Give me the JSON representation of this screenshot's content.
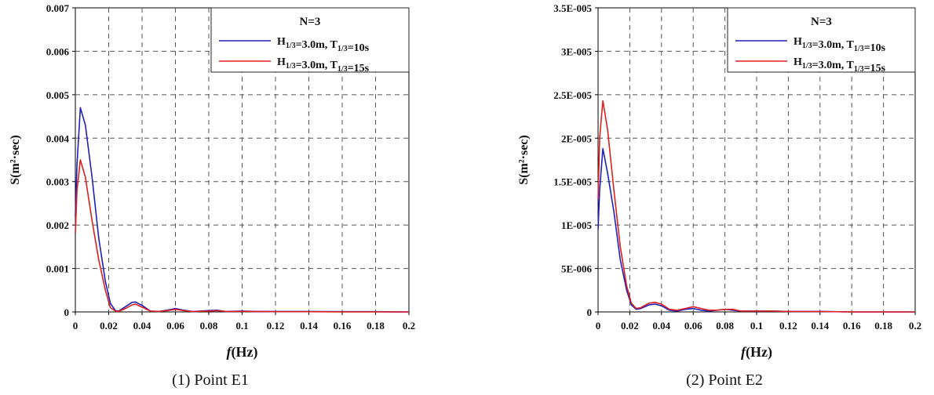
{
  "chart_data": [
    {
      "type": "line",
      "title": "(1) Point E1",
      "xlabel": "f (Hz)",
      "ylabel": "S(m²·sec)",
      "xlim": [
        0,
        0.2
      ],
      "ylim": [
        0,
        0.007
      ],
      "x_ticks": [
        "0",
        "0.02",
        "0.04",
        "0.06",
        "0.08",
        "0.1",
        "0.12",
        "0.14",
        "0.16",
        "0.18",
        "0.2"
      ],
      "y_ticks": [
        "0",
        "0.001",
        "0.002",
        "0.003",
        "0.004",
        "0.005",
        "0.006",
        "0.007"
      ],
      "grid": true,
      "legend_position": "top-right",
      "legend_title": "N=3",
      "series": [
        {
          "name": "H1/3=3.0m, T1/3=10s",
          "color": "#1f1fbf",
          "x": [
            0,
            0.001,
            0.003,
            0.006,
            0.01,
            0.014,
            0.018,
            0.021,
            0.024,
            0.026,
            0.03,
            0.034,
            0.036,
            0.04,
            0.045,
            0.05,
            0.055,
            0.06,
            0.065,
            0.07,
            0.08,
            0.085,
            0.09,
            0.1,
            0.11,
            0.12,
            0.14,
            0.16,
            0.18,
            0.2
          ],
          "y": [
            0.0022,
            0.0034,
            0.0047,
            0.0043,
            0.0031,
            0.0017,
            0.0007,
            0.0002,
            3e-05,
            2e-05,
            0.00012,
            0.00022,
            0.00023,
            0.00015,
            2e-05,
            1e-05,
            4e-05,
            8e-05,
            4e-05,
            1e-05,
            3e-05,
            4e-05,
            1e-05,
            2e-05,
            1e-05,
            1e-05,
            1e-05,
            5e-06,
            5e-06,
            0.0
          ]
        },
        {
          "name": "H1/3=3.0m, T1/3=15s",
          "color": "#dd1f1f",
          "x": [
            0,
            0.001,
            0.003,
            0.006,
            0.01,
            0.014,
            0.018,
            0.021,
            0.024,
            0.026,
            0.03,
            0.034,
            0.036,
            0.04,
            0.045,
            0.05,
            0.055,
            0.06,
            0.065,
            0.07,
            0.08,
            0.085,
            0.09,
            0.1,
            0.11,
            0.12,
            0.14,
            0.16,
            0.18,
            0.2
          ],
          "y": [
            0.0018,
            0.0028,
            0.0035,
            0.0031,
            0.0021,
            0.0012,
            0.0005,
            0.0001,
            2e-05,
            1e-05,
            8e-05,
            0.00016,
            0.00018,
            0.00011,
            2e-05,
            1e-05,
            3e-05,
            6e-05,
            3e-05,
            1e-05,
            2e-05,
            3e-05,
            1e-05,
            1e-05,
            1e-05,
            5e-06,
            5e-06,
            0.0,
            0.0,
            0.0
          ]
        }
      ]
    },
    {
      "type": "line",
      "title": "(2) Point E2",
      "xlabel": "f (Hz)",
      "ylabel": "S(m²·sec)",
      "xlim": [
        0,
        0.2
      ],
      "ylim": [
        0,
        3.5e-05
      ],
      "x_ticks": [
        "0",
        "0.02",
        "0.04",
        "0.06",
        "0.08",
        "0.1",
        "0.12",
        "0.14",
        "0.16",
        "0.18",
        "0.2"
      ],
      "y_ticks": [
        "0",
        "5E-006",
        "1E-005",
        "1.5E-005",
        "2E-005",
        "2.5E-005",
        "3E-005",
        "3.5E-005"
      ],
      "grid": true,
      "legend_position": "top-right",
      "legend_title": "N=3",
      "series": [
        {
          "name": "H1/3=3.0m, T1/3=10s",
          "color": "#1f1fbf",
          "x": [
            0,
            0.001,
            0.003,
            0.006,
            0.01,
            0.014,
            0.018,
            0.021,
            0.024,
            0.027,
            0.032,
            0.036,
            0.04,
            0.045,
            0.05,
            0.055,
            0.06,
            0.065,
            0.07,
            0.075,
            0.08,
            0.085,
            0.09,
            0.1,
            0.11,
            0.12,
            0.14,
            0.16,
            0.18,
            0.2
          ],
          "y": [
            9.5e-06,
            1.4e-05,
            1.88e-05,
            1.6e-05,
            1.15e-05,
            6e-06,
            2.5e-06,
            8e-07,
            3e-07,
            4e-07,
            8e-07,
            9e-07,
            7e-07,
            2e-07,
            1e-07,
            3e-07,
            4e-07,
            2e-07,
            1e-07,
            2e-07,
            3e-07,
            2e-07,
            1e-07,
            1e-07,
            1e-07,
            5e-08,
            5e-08,
            0.0,
            0.0,
            0.0
          ]
        },
        {
          "name": "H1/3=3.0m, T1/3=15s",
          "color": "#dd1f1f",
          "x": [
            0,
            0.001,
            0.003,
            0.006,
            0.01,
            0.014,
            0.018,
            0.021,
            0.024,
            0.027,
            0.032,
            0.036,
            0.04,
            0.045,
            0.05,
            0.055,
            0.06,
            0.065,
            0.07,
            0.075,
            0.08,
            0.085,
            0.09,
            0.1,
            0.11,
            0.12,
            0.14,
            0.16,
            0.18,
            0.2
          ],
          "y": [
            1.3e-05,
            2e-05,
            2.43e-05,
            2.1e-05,
            1.4e-05,
            7.5e-06,
            3e-06,
            1e-06,
            4e-07,
            5e-07,
            1e-06,
            1.1e-06,
            9e-07,
            3e-07,
            2e-07,
            4e-07,
            6e-07,
            4e-07,
            2e-07,
            2e-07,
            3e-07,
            3e-07,
            1e-07,
            1e-07,
            1e-07,
            5e-08,
            5e-08,
            0.0,
            0.0,
            0.0
          ]
        }
      ]
    }
  ]
}
